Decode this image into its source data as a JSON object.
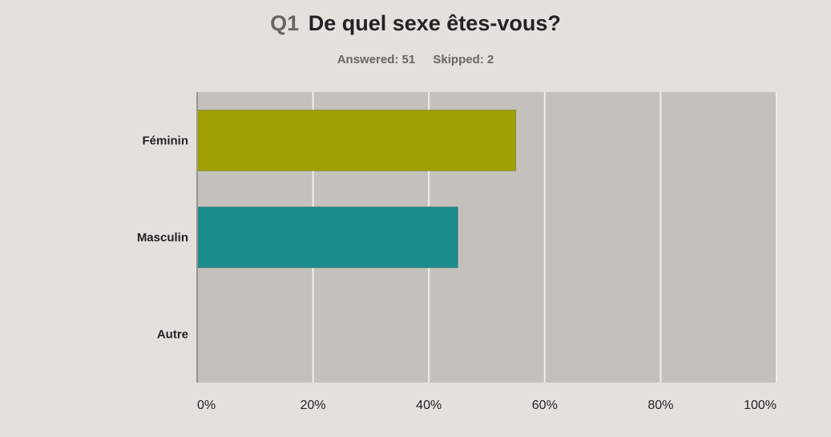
{
  "header": {
    "question_number": "Q1",
    "question_text": "De quel sexe êtes-vous?",
    "answered": "Answered: 51",
    "skipped": "Skipped: 2"
  },
  "colors": {
    "background": "#e4e1dd",
    "plot_background": "#c4c0bc",
    "gridline": "#eeeeee",
    "axis": "#9a948e"
  },
  "chart_data": {
    "type": "bar",
    "orientation": "horizontal",
    "title": "Q1 De quel sexe êtes-vous?",
    "subtitle": "Answered: 51    Skipped: 2",
    "categories": [
      "Féminin",
      "Masculin",
      "Autre"
    ],
    "values": [
      55,
      45,
      0
    ],
    "bar_colors": [
      "#9ea100",
      "#1a8c89",
      "#7a6e9e"
    ],
    "xlim": [
      0,
      100
    ],
    "x_ticks": [
      0,
      20,
      40,
      60,
      80,
      100
    ],
    "x_tick_labels": [
      "0%",
      "20%",
      "40%",
      "60%",
      "80%",
      "100%"
    ],
    "grid": true,
    "legend": "none"
  }
}
